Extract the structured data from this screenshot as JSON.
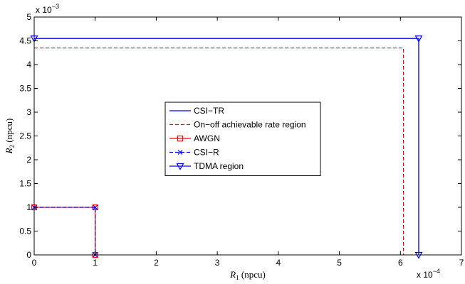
{
  "chart_data": {
    "type": "line",
    "title": "",
    "xlabel": {
      "var": "R",
      "sub": "1",
      "unit": " (npcu)"
    },
    "ylabel": {
      "var": "R",
      "sub": "2",
      "unit": " (npcu)"
    },
    "x_multiplier": {
      "base": "x 10",
      "exp": "−4"
    },
    "y_multiplier": {
      "base": "x 10",
      "exp": "−3"
    },
    "xlim": [
      0,
      7
    ],
    "ylim": [
      0,
      5
    ],
    "x_ticks": [
      0,
      1,
      2,
      3,
      4,
      5,
      6,
      7
    ],
    "y_ticks": [
      0,
      0.5,
      1,
      1.5,
      2,
      2.5,
      3,
      3.5,
      4,
      4.5,
      5
    ],
    "x_tick_labels": [
      "0",
      "1",
      "2",
      "3",
      "4",
      "5",
      "6",
      "7"
    ],
    "y_tick_labels": [
      "0",
      "0.5",
      "1",
      "1.5",
      "2",
      "2.5",
      "3",
      "3.5",
      "4",
      "4.5",
      "5"
    ],
    "grid": false,
    "legend_position": "center",
    "series": [
      {
        "name": "CSI−TR",
        "color": "#0000ff",
        "dash": "solid",
        "marker": "none",
        "x": [
          0,
          6.3,
          6.3
        ],
        "y": [
          4.55,
          4.55,
          0
        ]
      },
      {
        "name": "On−off achievable rate region",
        "color": "#ff0000",
        "dash": "dashed",
        "marker": "none",
        "x": [
          0,
          6.05,
          6.05
        ],
        "y": [
          4.35,
          4.35,
          0
        ]
      },
      {
        "name": "AWGN",
        "color": "#ff0000",
        "dash": "solid",
        "marker": "square",
        "x": [
          0,
          1,
          1
        ],
        "y": [
          1,
          1,
          0
        ]
      },
      {
        "name": "CSI−R",
        "color": "#0000ff",
        "dash": "dashed",
        "marker": "x",
        "x": [
          0,
          1,
          1
        ],
        "y": [
          1,
          1,
          0
        ]
      },
      {
        "name": "TDMA region",
        "color": "#0000ff",
        "dash": "solid",
        "marker": "triangle-down",
        "x": [
          0,
          6.3,
          6.3
        ],
        "y": [
          4.55,
          4.55,
          0
        ]
      }
    ]
  }
}
